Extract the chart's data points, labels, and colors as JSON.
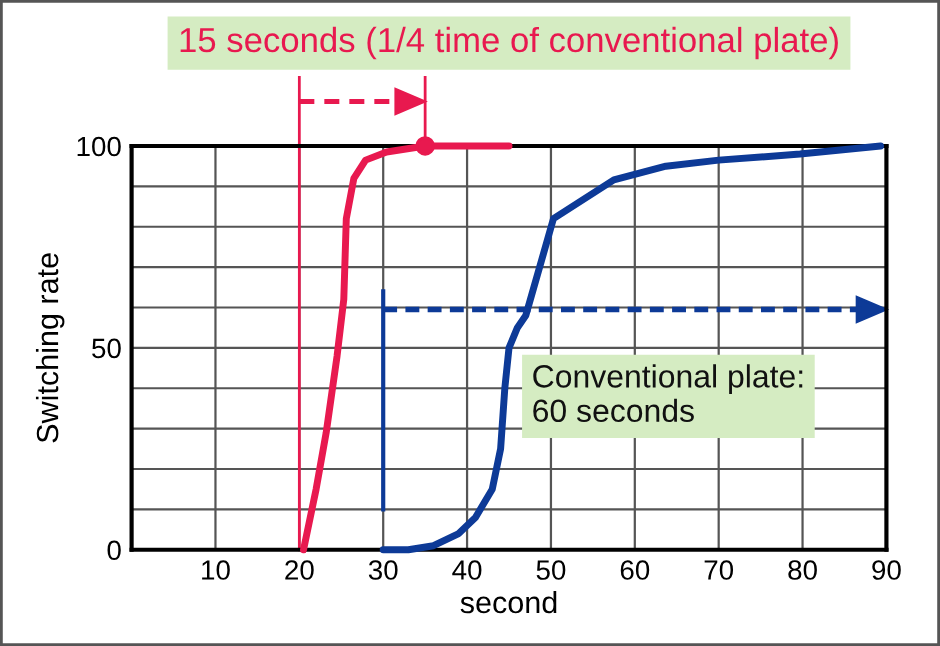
{
  "chart_data": {
    "type": "line",
    "xlabel": "second",
    "ylabel": "Switching rate",
    "xlim": [
      0,
      90
    ],
    "ylim": [
      0,
      100
    ],
    "xticks": [
      {
        "value": 0,
        "label": null
      },
      10,
      20,
      30,
      40,
      50,
      60,
      70,
      80,
      90
    ],
    "yticks": [
      0,
      {
        "value": 10,
        "label": null
      },
      {
        "value": 20,
        "label": null
      },
      {
        "value": 30,
        "label": null
      },
      {
        "value": 40,
        "label": null
      },
      50,
      {
        "value": 60,
        "label": null
      },
      {
        "value": 70,
        "label": null
      },
      {
        "value": 80,
        "label": null
      },
      {
        "value": 90,
        "label": null
      },
      100
    ],
    "grid": true,
    "legend": false,
    "line_style": "solid",
    "series": [
      {
        "color": "#e8194f",
        "x": [
          20.5,
          22,
          23.2,
          24.5,
          25.3,
          25.6,
          26.5,
          27.9,
          30.4,
          35,
          45
        ],
        "values": [
          0,
          15,
          29,
          48,
          62,
          82,
          92,
          96.5,
          98.5,
          100,
          100
        ]
      },
      {
        "type": "scatter",
        "marker": "circle",
        "color": "#e8194f",
        "x": [
          35
        ],
        "values": [
          100
        ]
      },
      {
        "color": "#0d3a97",
        "x": [
          30,
          33,
          36,
          39,
          41,
          43,
          44,
          44.5,
          45,
          46,
          47,
          50.3,
          57.5,
          63.7,
          70,
          79.7,
          89.3
        ],
        "values": [
          0,
          0,
          1,
          4,
          8,
          15,
          25,
          40,
          50,
          55,
          58,
          82,
          91.6,
          95,
          96.5,
          98,
          100
        ]
      }
    ],
    "ref_lines": [
      {
        "axis": "x",
        "value": 20,
        "color": "#e8194f"
      },
      {
        "axis": "x",
        "value": 30,
        "color": "#0d3a97"
      }
    ],
    "annotations": [
      {
        "text": "15 seconds (1/4 time of conventional plate)",
        "x": 35,
        "y": 100
      },
      "Conventional plate:\n60 seconds"
    ]
  }
}
